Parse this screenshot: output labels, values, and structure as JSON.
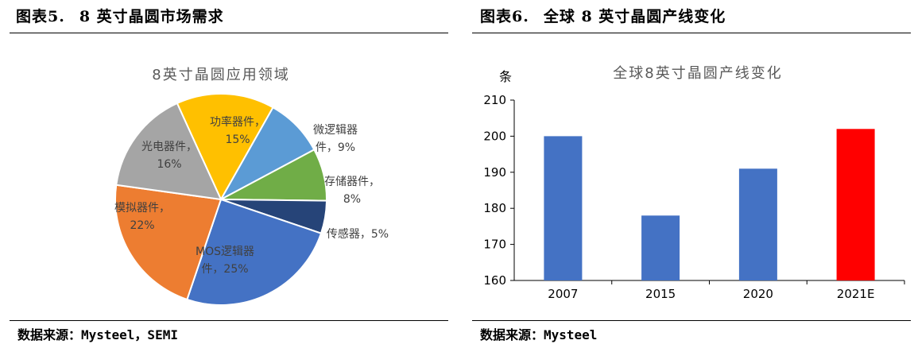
{
  "left": {
    "figure_label": "图表5.",
    "figure_title": "8 英寸晶圆市场需求",
    "source": "数据来源：Mysteel，SEMI"
  },
  "right": {
    "figure_label": "图表6.",
    "figure_title": "全球 8 英寸晶圆产线变化",
    "source": "数据来源：Mysteel"
  },
  "chart_data": [
    {
      "type": "pie",
      "title": "8英寸晶圆应用领域",
      "slices": [
        {
          "name": "功率器件",
          "value": 15,
          "color": "#FFC000",
          "label_lines": [
            "功率器件，",
            "15%"
          ]
        },
        {
          "name": "微逻辑器件",
          "value": 9,
          "color": "#5B9BD5",
          "label_lines": [
            "微逻辑器",
            "件，9%"
          ]
        },
        {
          "name": "存储器件",
          "value": 8,
          "color": "#70AD47",
          "label_lines": [
            "存储器件，",
            "8%"
          ]
        },
        {
          "name": "传感器",
          "value": 5,
          "color": "#264478",
          "label_lines": [
            "传感器，5%"
          ]
        },
        {
          "name": "MOS逻辑器件",
          "value": 25,
          "color": "#4472C4",
          "label_lines": [
            "MOS逻辑器",
            "件，25%"
          ]
        },
        {
          "name": "模拟器件",
          "value": 22,
          "color": "#ED7D31",
          "label_lines": [
            "模拟器件，",
            "22%"
          ]
        },
        {
          "name": "光电器件",
          "value": 16,
          "color": "#A5A5A5",
          "label_lines": [
            "光电器件，",
            "16%"
          ]
        }
      ]
    },
    {
      "type": "bar",
      "title": "全球8英寸晶圆产线变化",
      "ylabel": "条",
      "categories": [
        "2007",
        "2015",
        "2020",
        "2021E"
      ],
      "values": [
        200,
        178,
        191,
        202
      ],
      "colors": [
        "#4472C4",
        "#4472C4",
        "#4472C4",
        "#FF0000"
      ],
      "ylim": [
        160,
        210
      ],
      "yticks": [
        160,
        170,
        180,
        190,
        200,
        210
      ],
      "grid": false
    }
  ]
}
